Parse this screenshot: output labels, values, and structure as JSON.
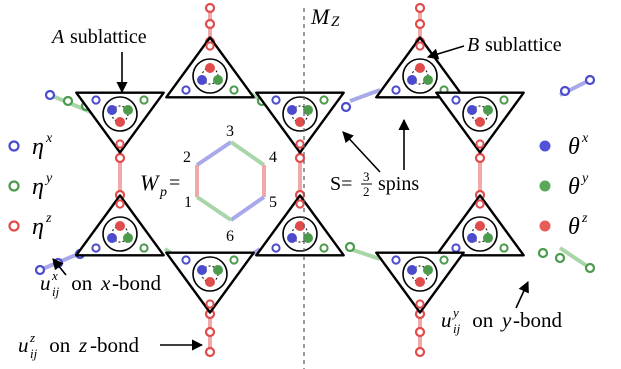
{
  "labels": {
    "a_sublattice_letter": "A",
    "a_sublattice_word": "sublattice",
    "b_sublattice_letter": "B",
    "b_sublattice_word": "sublattice",
    "mirror_M": "M",
    "mirror_sub": "Z",
    "plaquette_W": "W",
    "plaquette_sub": "p",
    "plaquette_eq": "=",
    "spin_S": "S=",
    "spin_num": "3",
    "spin_den": "2",
    "spin_word": "spins",
    "ux_u": "u",
    "ux_sup": "x",
    "ux_sub": "ij",
    "ux_text": " on ",
    "ux_bond_letter": "x",
    "ux_bond_word": "-bond",
    "uy_u": "u",
    "uy_sup": "y",
    "uy_sub": "ij",
    "uy_text": " on ",
    "uy_bond_letter": "y",
    "uy_bond_word": "-bond",
    "uz_u": "u",
    "uz_sup": "z",
    "uz_sub": "ij",
    "uz_text": " on ",
    "uz_bond_letter": "z",
    "uz_bond_word": "-bond"
  },
  "legend_left": [
    {
      "symbol": "η",
      "sup": "x",
      "color": "#4b4bcc"
    },
    {
      "symbol": "η",
      "sup": "y",
      "color": "#4c9a4c"
    },
    {
      "symbol": "η",
      "sup": "z",
      "color": "#e04c4c"
    }
  ],
  "legend_right": [
    {
      "symbol": "θ",
      "sup": "x",
      "color": "#5252d6"
    },
    {
      "symbol": "θ",
      "sup": "y",
      "color": "#5aa85a"
    },
    {
      "symbol": "θ",
      "sup": "z",
      "color": "#e85c5c"
    }
  ],
  "hexagon_sites": [
    "1",
    "2",
    "3",
    "4",
    "5",
    "6"
  ],
  "colors": {
    "x_bond": "#a9a9ea",
    "y_bond": "#a9d6a9",
    "z_bond": "#f0a8a8",
    "blue": "#4b4bcc",
    "green": "#4c9a4c",
    "red": "#e04c4c"
  }
}
